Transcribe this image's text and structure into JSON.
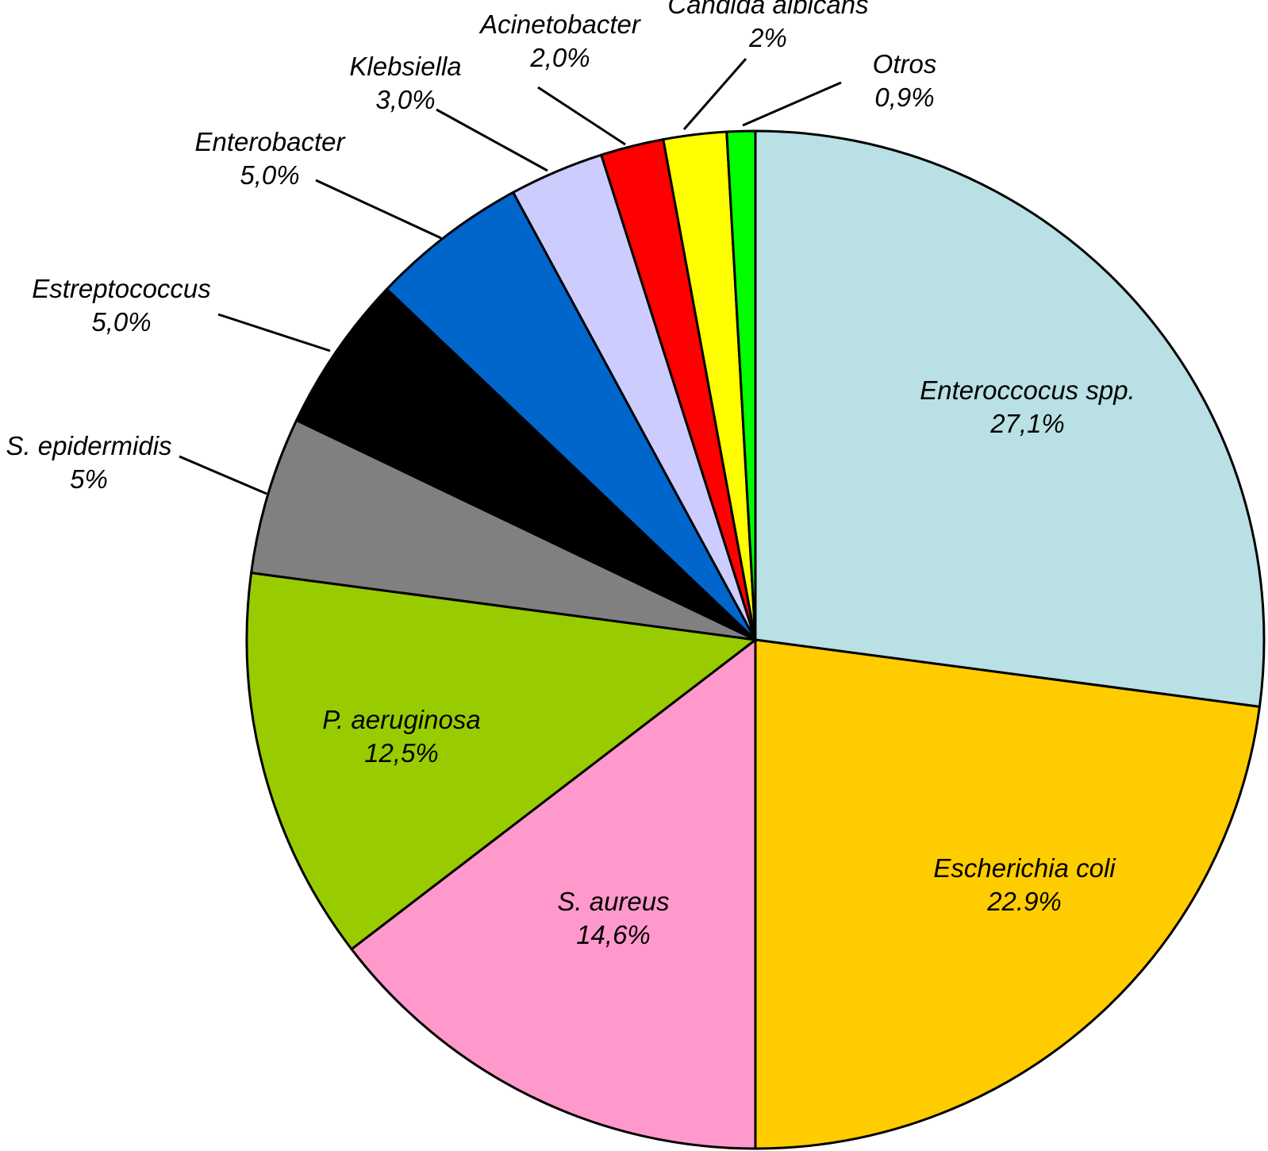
{
  "chart_data": {
    "type": "pie",
    "title": "",
    "start": "12 o'clock",
    "direction": "clockwise",
    "slices": [
      {
        "label": "Enteroccocus spp.",
        "value_text": "27,1%",
        "value": 27.1,
        "color": "#b9e0e4",
        "label_placement": "inside"
      },
      {
        "label": "Escherichia coli",
        "value_text": "22.9%",
        "value": 22.9,
        "color": "#ffcc00",
        "label_placement": "inside"
      },
      {
        "label": "S. aureus",
        "value_text": "14,6%",
        "value": 14.6,
        "color": "#ff99cc",
        "label_placement": "inside"
      },
      {
        "label": "P. aeruginosa",
        "value_text": "12,5%",
        "value": 12.5,
        "color": "#99cc00",
        "label_placement": "inside"
      },
      {
        "label": "S. epidermidis",
        "value_text": "5%",
        "value": 5,
        "color": "#808080",
        "label_placement": "outside"
      },
      {
        "label": "Estreptococcus",
        "value_text": "5,0%",
        "value": 5.0,
        "color": "#000000",
        "label_placement": "outside"
      },
      {
        "label": "Enterobacter",
        "value_text": "5,0%",
        "value": 5.0,
        "color": "#0066cc",
        "label_placement": "outside"
      },
      {
        "label": "Klebsiella",
        "value_text": "3,0%",
        "value": 3.0,
        "color": "#ccccff",
        "label_placement": "outside"
      },
      {
        "label": "Acinetobacter",
        "value_text": "2,0%",
        "value": 2.0,
        "color": "#ff0000",
        "label_placement": "outside"
      },
      {
        "label": "Candida albicans",
        "value_text": "2%",
        "value": 2,
        "color": "#ffff00",
        "label_placement": "outside"
      },
      {
        "label": "Otros",
        "value_text": "0,9%",
        "value": 0.9,
        "color": "#00ff00",
        "label_placement": "outside"
      }
    ]
  }
}
